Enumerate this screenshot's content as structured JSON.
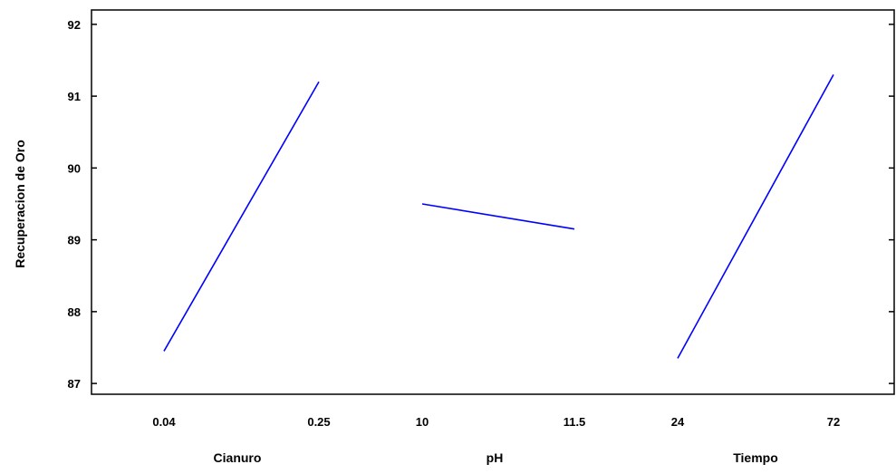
{
  "chart_data": {
    "type": "line",
    "title": "",
    "ylabel": "Recuperacion de Oro",
    "ylim": [
      86.85,
      92.2
    ],
    "yticks": [
      87,
      88,
      89,
      90,
      91,
      92
    ],
    "grid": false,
    "line_color": "#0000ff",
    "factors": [
      {
        "name": "Cianuro",
        "x": [
          0.04,
          0.25
        ],
        "y": [
          87.45,
          91.2
        ],
        "tick_labels": [
          "0.04",
          "0.25"
        ]
      },
      {
        "name": "pH",
        "x": [
          10,
          11.5
        ],
        "y": [
          89.5,
          89.15
        ],
        "tick_labels": [
          "10",
          "11.5"
        ]
      },
      {
        "name": "Tiempo",
        "x": [
          24,
          72
        ],
        "y": [
          87.35,
          91.3
        ],
        "tick_labels": [
          "24",
          "72"
        ]
      }
    ]
  }
}
